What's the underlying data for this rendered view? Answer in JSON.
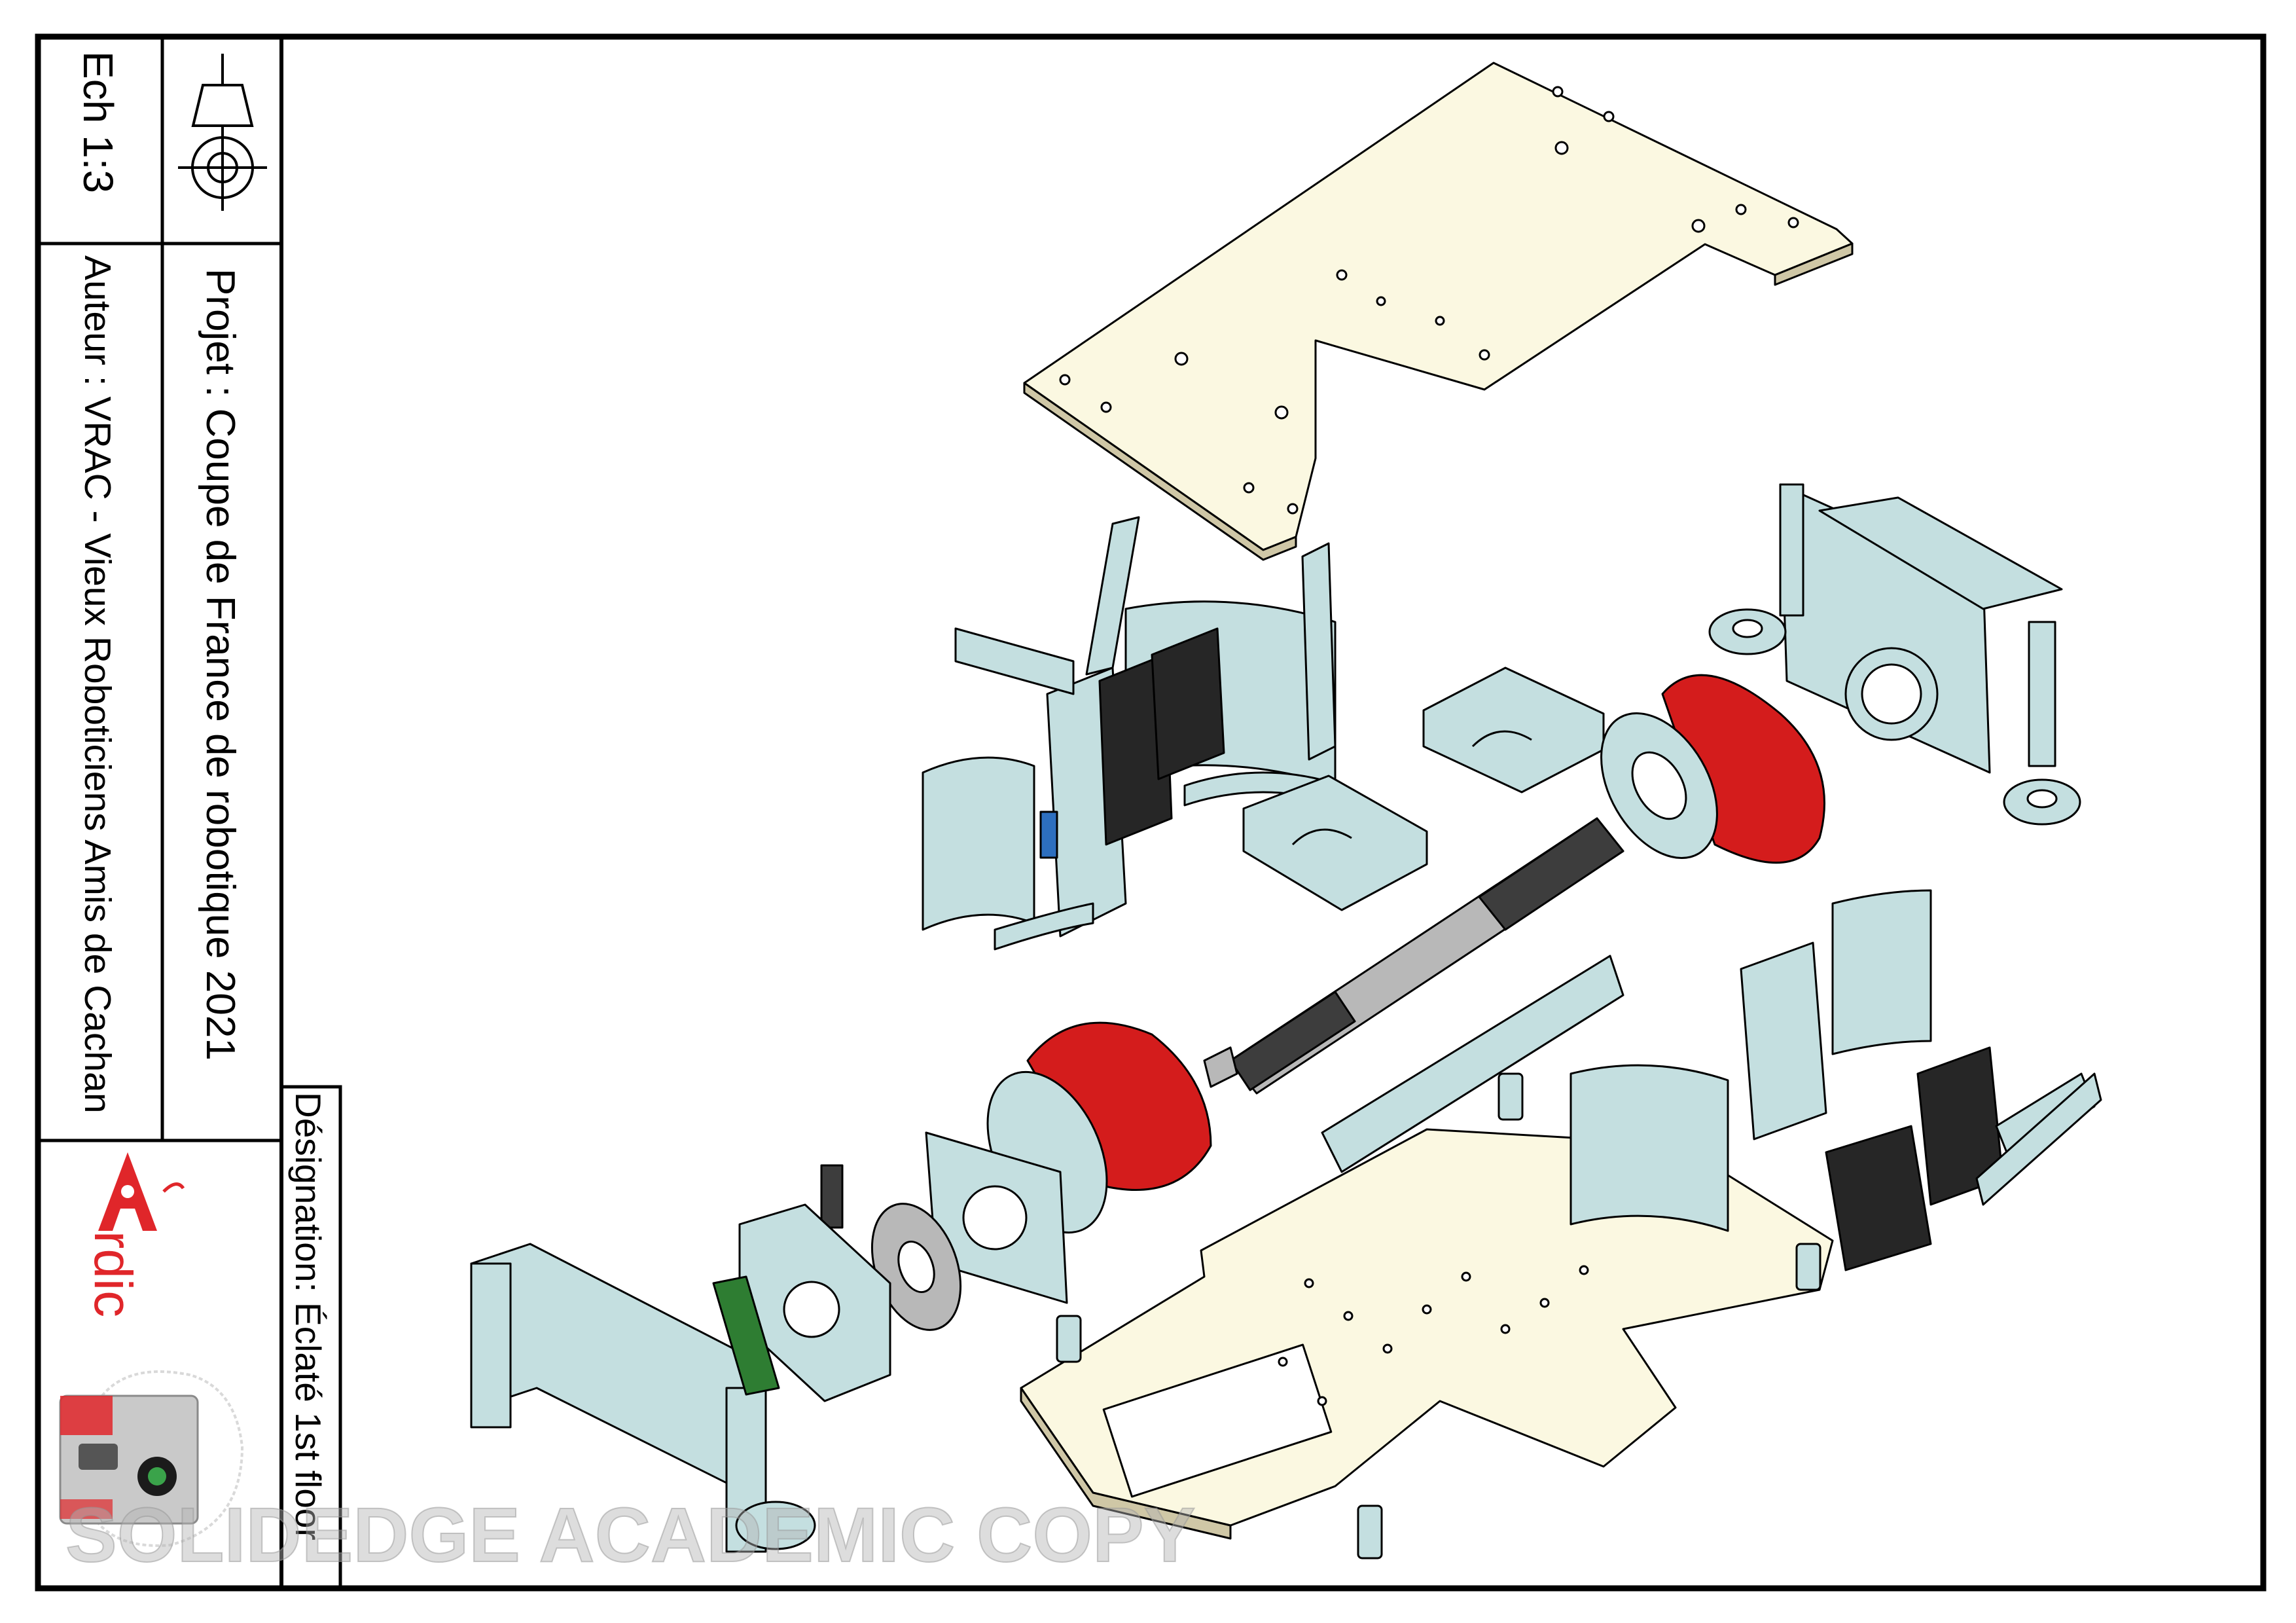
{
  "title_block": {
    "scale": "Ech  1:3",
    "project": "Projet : Coupe de France de robotique  2021",
    "author": "Auteur : VRAC - Vieux Roboticiens Amis de Cachan",
    "designation": "Désignation: Éclaté  1st floor"
  },
  "logo": {
    "letter": "A",
    "word": "rdic",
    "accent_color": "#e0262a"
  },
  "watermark": "SOLIDEDGE ACADEMIC COPY",
  "colors": {
    "plate": "#fbf8e1",
    "bracket": "#c4dfe0",
    "wheel": "#d41c1c",
    "motor_grey": "#b8b8b8",
    "servo": "#262626",
    "pcb": "#2e7d32",
    "line": "#000000"
  },
  "icons": [
    "first-angle-projection-icon",
    "ardic-robot-logo-icon"
  ]
}
